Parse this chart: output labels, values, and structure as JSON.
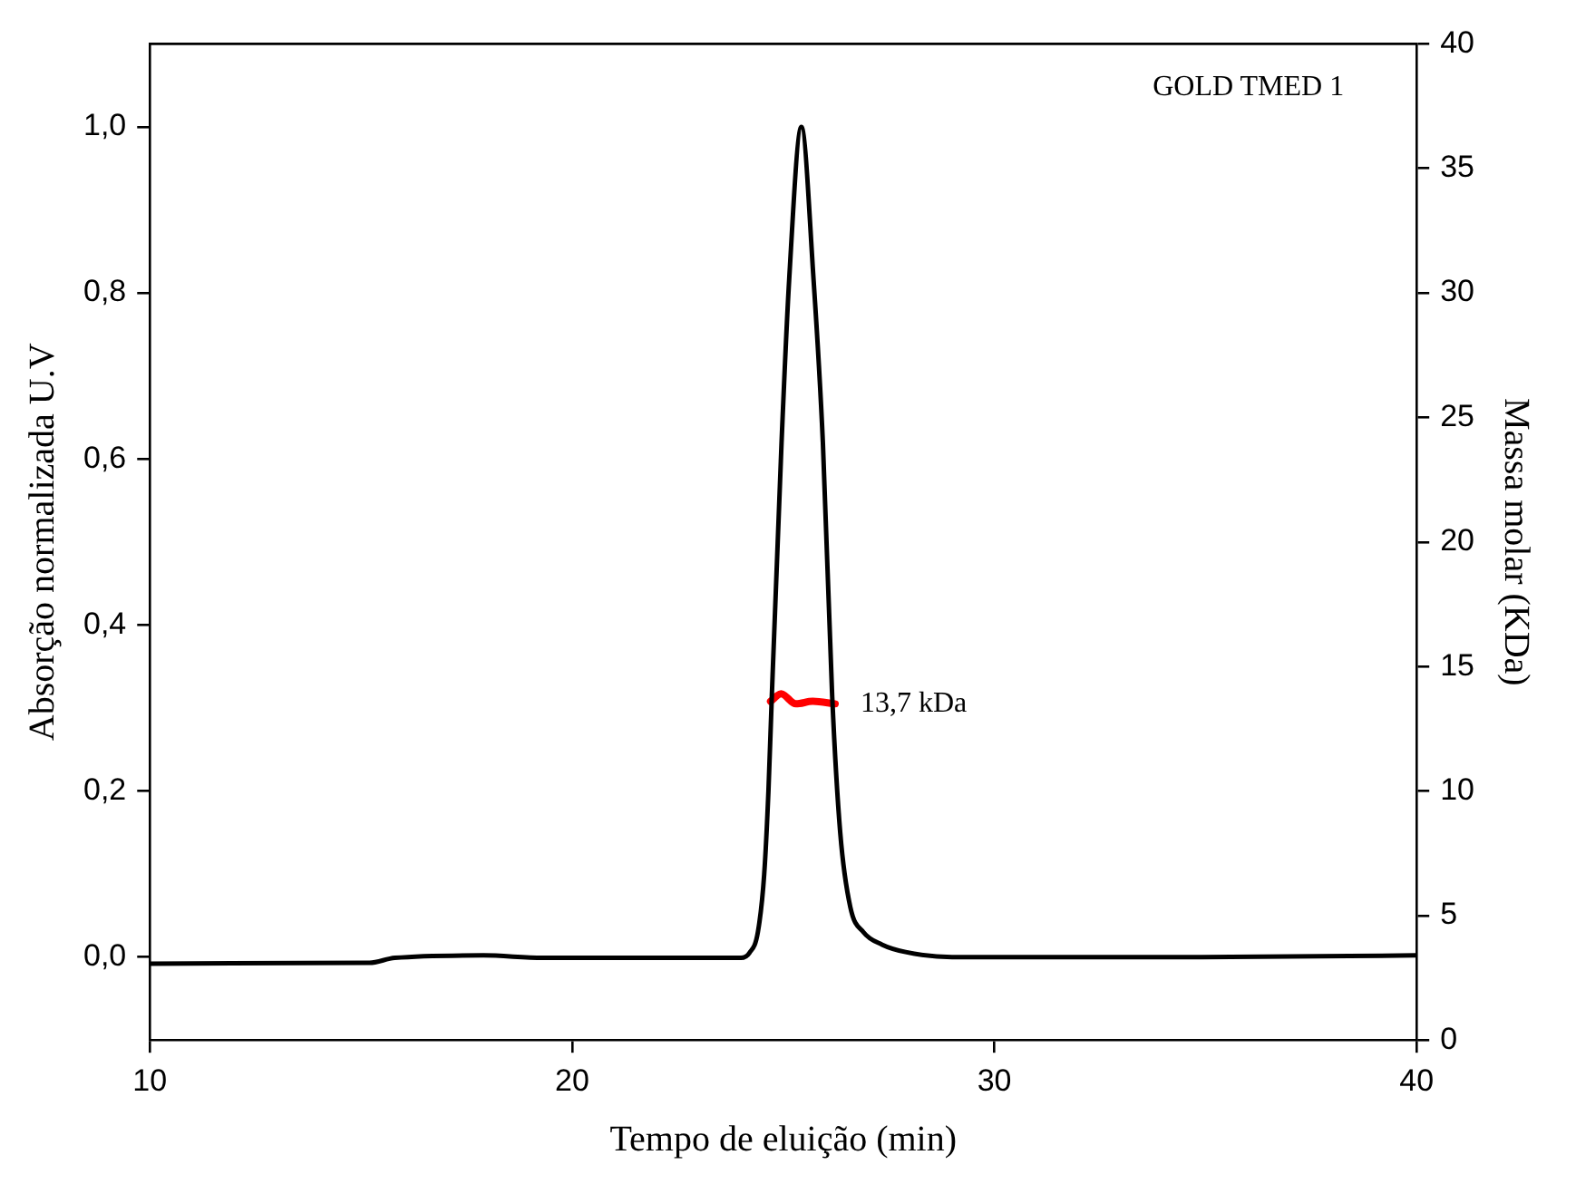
{
  "chart_data": {
    "type": "line",
    "xlabel": "Tempo de eluição (min)",
    "ylabel": "Absorção normalizada U.V",
    "y2label": "Massa molar (KDa)",
    "xlim": [
      10,
      40
    ],
    "xticks": [
      10,
      20,
      30,
      40
    ],
    "ylim": [
      -0.1,
      1.1
    ],
    "yticks": [
      {
        "value": 0,
        "label": "0,0"
      },
      {
        "value": 0.2,
        "label": "0,2"
      },
      {
        "value": 0.4,
        "label": "0,4"
      },
      {
        "value": 0.6,
        "label": "0,6"
      },
      {
        "value": 0.8,
        "label": "0,8"
      },
      {
        "value": 1,
        "label": "1,0"
      }
    ],
    "y2lim": [
      0,
      40
    ],
    "y2ticks": [
      0,
      5,
      10,
      15,
      20,
      25,
      30,
      35,
      40
    ],
    "grid": false,
    "legend": false,
    "marker": "none",
    "line_style": "solid",
    "series": [
      {
        "color": "#000000",
        "x": [
          10,
          15.2,
          15.8,
          17.9,
          19.3,
          24.0,
          24.2,
          24.4,
          24.55,
          24.65,
          24.73,
          24.96,
          25.14,
          25.43,
          25.72,
          25.94,
          26.16,
          26.35,
          26.59,
          26.9,
          27.34,
          27.9,
          29.0,
          34.9,
          40
        ],
        "values": [
          -0.008,
          -0.007,
          -0.001,
          0.002,
          -0.001,
          -0.001,
          0.005,
          0.03,
          0.1,
          0.2,
          0.314,
          0.619,
          0.815,
          1.0,
          0.815,
          0.619,
          0.314,
          0.15,
          0.06,
          0.03,
          0.015,
          0.006,
          0.0,
          0.0,
          0.002
        ]
      },
      {
        "color": "#ff0000",
        "axis": "y2",
        "x": [
          24.7,
          24.95,
          25.3,
          25.7,
          26.23
        ],
        "values": [
          13.6,
          13.9,
          13.5,
          13.6,
          13.5
        ]
      }
    ],
    "annotations": [
      "GOLD TMED 1",
      "13,7 kDa"
    ]
  }
}
